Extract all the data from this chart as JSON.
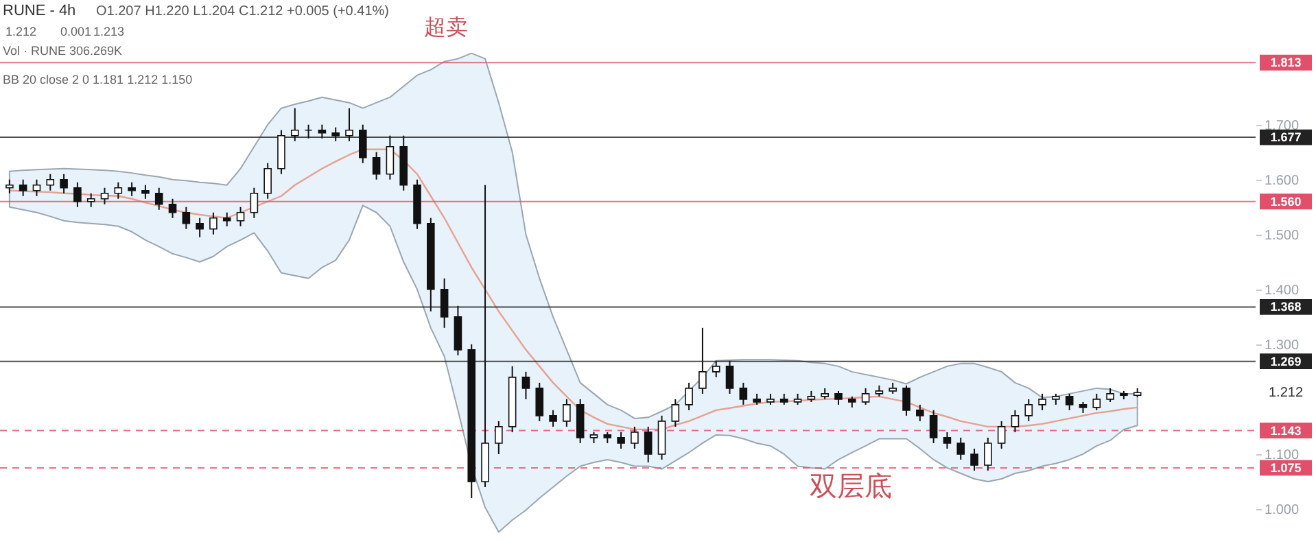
{
  "chart_data": {
    "type": "candlestick",
    "title": "RUNE - 4h",
    "subtitle": "O1.207 H1.220 L1.204 C1.212 +0.005 (+0.41%)",
    "categories": [
      null,
      null,
      null,
      null,
      null,
      null,
      null,
      null,
      null,
      null,
      null,
      null,
      null,
      null,
      null,
      null,
      null,
      null,
      null,
      null,
      null,
      null,
      null,
      null,
      null,
      null,
      null,
      null,
      null,
      null,
      null,
      null,
      null,
      null,
      null,
      null,
      null,
      null,
      null,
      null,
      null,
      null,
      null,
      null,
      null,
      null,
      null,
      null,
      null,
      null,
      null,
      null,
      null,
      null,
      null,
      null,
      null,
      null,
      null,
      null,
      null,
      null,
      null,
      null,
      null,
      null,
      null,
      null,
      null,
      null,
      null,
      null,
      null,
      null,
      null,
      null,
      null,
      null,
      null,
      null,
      null,
      null,
      null,
      null,
      null,
      null,
      null,
      null,
      null,
      null,
      null,
      null
    ],
    "ohlc": [
      [
        1.585,
        1.6,
        1.575,
        1.59
      ],
      [
        1.59,
        1.6,
        1.57,
        1.58
      ],
      [
        1.58,
        1.6,
        1.57,
        1.59
      ],
      [
        1.59,
        1.61,
        1.58,
        1.6
      ],
      [
        1.6,
        1.61,
        1.575,
        1.585
      ],
      [
        1.585,
        1.595,
        1.55,
        1.56
      ],
      [
        1.56,
        1.575,
        1.55,
        1.565
      ],
      [
        1.565,
        1.585,
        1.555,
        1.575
      ],
      [
        1.575,
        1.595,
        1.565,
        1.585
      ],
      [
        1.585,
        1.595,
        1.57,
        1.58
      ],
      [
        1.58,
        1.59,
        1.565,
        1.575
      ],
      [
        1.575,
        1.585,
        1.545,
        1.555
      ],
      [
        1.555,
        1.565,
        1.53,
        1.54
      ],
      [
        1.54,
        1.55,
        1.51,
        1.52
      ],
      [
        1.52,
        1.53,
        1.495,
        1.51
      ],
      [
        1.51,
        1.54,
        1.5,
        1.53
      ],
      [
        1.53,
        1.54,
        1.515,
        1.525
      ],
      [
        1.525,
        1.55,
        1.515,
        1.54
      ],
      [
        1.54,
        1.585,
        1.53,
        1.575
      ],
      [
        1.575,
        1.63,
        1.565,
        1.62
      ],
      [
        1.62,
        1.69,
        1.61,
        1.68
      ],
      [
        1.68,
        1.73,
        1.67,
        1.69
      ],
      [
        1.69,
        1.7,
        1.675,
        1.69
      ],
      [
        1.69,
        1.7,
        1.675,
        1.685
      ],
      [
        1.685,
        1.695,
        1.67,
        1.68
      ],
      [
        1.68,
        1.73,
        1.67,
        1.69
      ],
      [
        1.69,
        1.7,
        1.63,
        1.64
      ],
      [
        1.64,
        1.65,
        1.6,
        1.61
      ],
      [
        1.61,
        1.68,
        1.6,
        1.66
      ],
      [
        1.66,
        1.68,
        1.58,
        1.59
      ],
      [
        1.59,
        1.6,
        1.51,
        1.52
      ],
      [
        1.52,
        1.53,
        1.36,
        1.4
      ],
      [
        1.4,
        1.42,
        1.33,
        1.35
      ],
      [
        1.35,
        1.37,
        1.28,
        1.29
      ],
      [
        1.29,
        1.3,
        1.02,
        1.05
      ],
      [
        1.05,
        1.59,
        1.04,
        1.12
      ],
      [
        1.12,
        1.16,
        1.1,
        1.15
      ],
      [
        1.15,
        1.26,
        1.14,
        1.24
      ],
      [
        1.24,
        1.25,
        1.2,
        1.22
      ],
      [
        1.22,
        1.23,
        1.16,
        1.17
      ],
      [
        1.17,
        1.18,
        1.15,
        1.16
      ],
      [
        1.16,
        1.2,
        1.15,
        1.19
      ],
      [
        1.19,
        1.2,
        1.12,
        1.13
      ],
      [
        1.13,
        1.14,
        1.12,
        1.135
      ],
      [
        1.135,
        1.14,
        1.12,
        1.13
      ],
      [
        1.13,
        1.14,
        1.11,
        1.12
      ],
      [
        1.12,
        1.15,
        1.11,
        1.14
      ],
      [
        1.14,
        1.15,
        1.085,
        1.1
      ],
      [
        1.1,
        1.17,
        1.09,
        1.16
      ],
      [
        1.16,
        1.2,
        1.15,
        1.19
      ],
      [
        1.19,
        1.23,
        1.18,
        1.22
      ],
      [
        1.22,
        1.33,
        1.21,
        1.25
      ],
      [
        1.25,
        1.27,
        1.24,
        1.26
      ],
      [
        1.26,
        1.27,
        1.21,
        1.22
      ],
      [
        1.22,
        1.23,
        1.19,
        1.2
      ],
      [
        1.2,
        1.21,
        1.19,
        1.195
      ],
      [
        1.195,
        1.21,
        1.19,
        1.2
      ],
      [
        1.2,
        1.21,
        1.19,
        1.195
      ],
      [
        1.195,
        1.21,
        1.19,
        1.2
      ],
      [
        1.2,
        1.215,
        1.195,
        1.205
      ],
      [
        1.205,
        1.22,
        1.2,
        1.21
      ],
      [
        1.21,
        1.215,
        1.19,
        1.2
      ],
      [
        1.2,
        1.205,
        1.185,
        1.195
      ],
      [
        1.195,
        1.22,
        1.19,
        1.21
      ],
      [
        1.21,
        1.225,
        1.205,
        1.215
      ],
      [
        1.215,
        1.23,
        1.21,
        1.22
      ],
      [
        1.22,
        1.225,
        1.17,
        1.18
      ],
      [
        1.18,
        1.19,
        1.16,
        1.17
      ],
      [
        1.17,
        1.18,
        1.12,
        1.13
      ],
      [
        1.13,
        1.14,
        1.11,
        1.12
      ],
      [
        1.12,
        1.13,
        1.09,
        1.1
      ],
      [
        1.1,
        1.11,
        1.07,
        1.08
      ],
      [
        1.08,
        1.13,
        1.07,
        1.12
      ],
      [
        1.12,
        1.16,
        1.11,
        1.15
      ],
      [
        1.15,
        1.18,
        1.14,
        1.17
      ],
      [
        1.17,
        1.2,
        1.16,
        1.19
      ],
      [
        1.19,
        1.21,
        1.18,
        1.2
      ],
      [
        1.2,
        1.21,
        1.19,
        1.205
      ],
      [
        1.205,
        1.21,
        1.18,
        1.19
      ],
      [
        1.19,
        1.195,
        1.175,
        1.185
      ],
      [
        1.185,
        1.21,
        1.18,
        1.2
      ],
      [
        1.2,
        1.22,
        1.195,
        1.21
      ],
      [
        1.21,
        1.215,
        1.2,
        1.207
      ],
      [
        1.207,
        1.22,
        1.204,
        1.212
      ],
      null,
      null,
      null,
      null,
      null,
      null,
      null,
      null
    ],
    "series": [
      {
        "type": "line",
        "color": "#e8a090",
        "values": [
          1.58,
          1.579,
          1.578,
          1.577,
          1.575,
          1.574,
          1.572,
          1.571,
          1.57,
          1.565,
          1.558,
          1.552,
          1.545,
          1.54,
          1.536,
          1.533,
          1.53,
          1.54,
          1.55,
          1.56,
          1.57,
          1.59,
          1.605,
          1.62,
          1.633,
          1.645,
          1.655,
          1.655,
          1.655,
          1.635,
          1.61,
          1.57,
          1.53,
          1.485,
          1.44,
          1.4,
          1.36,
          1.325,
          1.29,
          1.26,
          1.23,
          1.205,
          1.18,
          1.167,
          1.155,
          1.15,
          1.145,
          1.145,
          1.145,
          1.153,
          1.16,
          1.17,
          1.18,
          1.184,
          1.188,
          1.192,
          1.195,
          1.196,
          1.197,
          1.199,
          1.2,
          1.201,
          1.202,
          1.204,
          1.205,
          1.2,
          1.195,
          1.185,
          1.175,
          1.168,
          1.16,
          1.155,
          1.15,
          1.15,
          1.15,
          1.152,
          1.155,
          1.16,
          1.165,
          1.17,
          1.175,
          1.178,
          1.182,
          1.185,
          null,
          null,
          null,
          null,
          null,
          null,
          null,
          null
        ],
        "upper": [
          1.615,
          1.617,
          1.618,
          1.619,
          1.62,
          1.619,
          1.618,
          1.617,
          1.615,
          1.612,
          1.608,
          1.605,
          1.6,
          1.598,
          1.595,
          1.593,
          1.59,
          1.62,
          1.66,
          1.7,
          1.73,
          1.737,
          1.743,
          1.75,
          1.745,
          1.74,
          1.73,
          1.74,
          1.75,
          1.77,
          1.79,
          1.8,
          1.815,
          1.82,
          1.83,
          1.82,
          1.74,
          1.65,
          1.5,
          1.42,
          1.35,
          1.29,
          1.23,
          1.21,
          1.19,
          1.18,
          1.165,
          1.167,
          1.178,
          1.19,
          1.215,
          1.24,
          1.27,
          1.271,
          1.272,
          1.272,
          1.272,
          1.271,
          1.27,
          1.267,
          1.265,
          1.26,
          1.25,
          1.245,
          1.24,
          1.235,
          1.228,
          1.24,
          1.25,
          1.26,
          1.265,
          1.265,
          1.258,
          1.25,
          1.23,
          1.22,
          1.203,
          1.205,
          1.21,
          1.215,
          1.22,
          1.218,
          1.21,
          1.21,
          null,
          null,
          null,
          null,
          null,
          null,
          null,
          null
        ],
        "lower": [
          1.55,
          1.545,
          1.54,
          1.533,
          1.525,
          1.522,
          1.52,
          1.518,
          1.515,
          1.505,
          1.49,
          1.478,
          1.465,
          1.458,
          1.45,
          1.46,
          1.478,
          1.49,
          1.503,
          1.47,
          1.43,
          1.425,
          1.42,
          1.44,
          1.453,
          1.49,
          1.553,
          1.54,
          1.515,
          1.45,
          1.4,
          1.33,
          1.278,
          1.18,
          1.078,
          1.003,
          0.958,
          0.98,
          0.998,
          1.02,
          1.04,
          1.06,
          1.078,
          1.085,
          1.09,
          1.085,
          1.078,
          1.078,
          1.073,
          1.088,
          1.103,
          1.12,
          1.135,
          1.134,
          1.128,
          1.12,
          1.115,
          1.1,
          1.078,
          1.075,
          1.073,
          1.09,
          1.103,
          1.115,
          1.128,
          1.128,
          1.128,
          1.11,
          1.09,
          1.075,
          1.065,
          1.055,
          1.05,
          1.055,
          1.065,
          1.07,
          1.078,
          1.083,
          1.09,
          1.1,
          1.115,
          1.125,
          1.145,
          1.152,
          null,
          null,
          null,
          null,
          null,
          null,
          null,
          null
        ]
      }
    ],
    "ylim": [
      0.94,
      1.927
    ],
    "yticks": [
      {
        "value": 1.0,
        "label": "1.000"
      },
      {
        "value": 1.1,
        "label": "1.100"
      },
      {
        "value": 1.3,
        "label": "1.300"
      },
      {
        "value": 1.4,
        "label": "1.400"
      },
      {
        "value": 1.5,
        "label": "1.500"
      },
      {
        "value": 1.6,
        "label": "1.600"
      },
      {
        "value": 1.7,
        "label": "1.700"
      }
    ],
    "grid": false,
    "ref_lines": [
      {
        "axis": "y",
        "value": 1.813,
        "label": "1.813",
        "color": "#e0506a"
      },
      {
        "axis": "y",
        "value": 1.677,
        "label": "1.677",
        "color": "#222222"
      },
      {
        "axis": "y",
        "value": 1.56,
        "label": "1.560",
        "color": "#e0506a"
      },
      {
        "axis": "y",
        "value": 1.368,
        "label": "1.368",
        "color": "#222222"
      },
      {
        "axis": "y",
        "value": 1.269,
        "label": "1.269",
        "color": "#222222"
      },
      {
        "axis": "y",
        "value": 1.143,
        "label": "1.143",
        "color": "#e0506a",
        "line_style": "dashed"
      },
      {
        "axis": "y",
        "value": 1.075,
        "label": "1.075",
        "color": "#e0506a",
        "line_style": "dashed"
      }
    ],
    "annotations": [
      "1.212",
      "0.001",
      "1.213",
      "Vol · RUNE  306.269K",
      "BB 20 close 2 0  1.181  1.212  1.150",
      "超卖",
      "双层底",
      "1.212"
    ]
  }
}
